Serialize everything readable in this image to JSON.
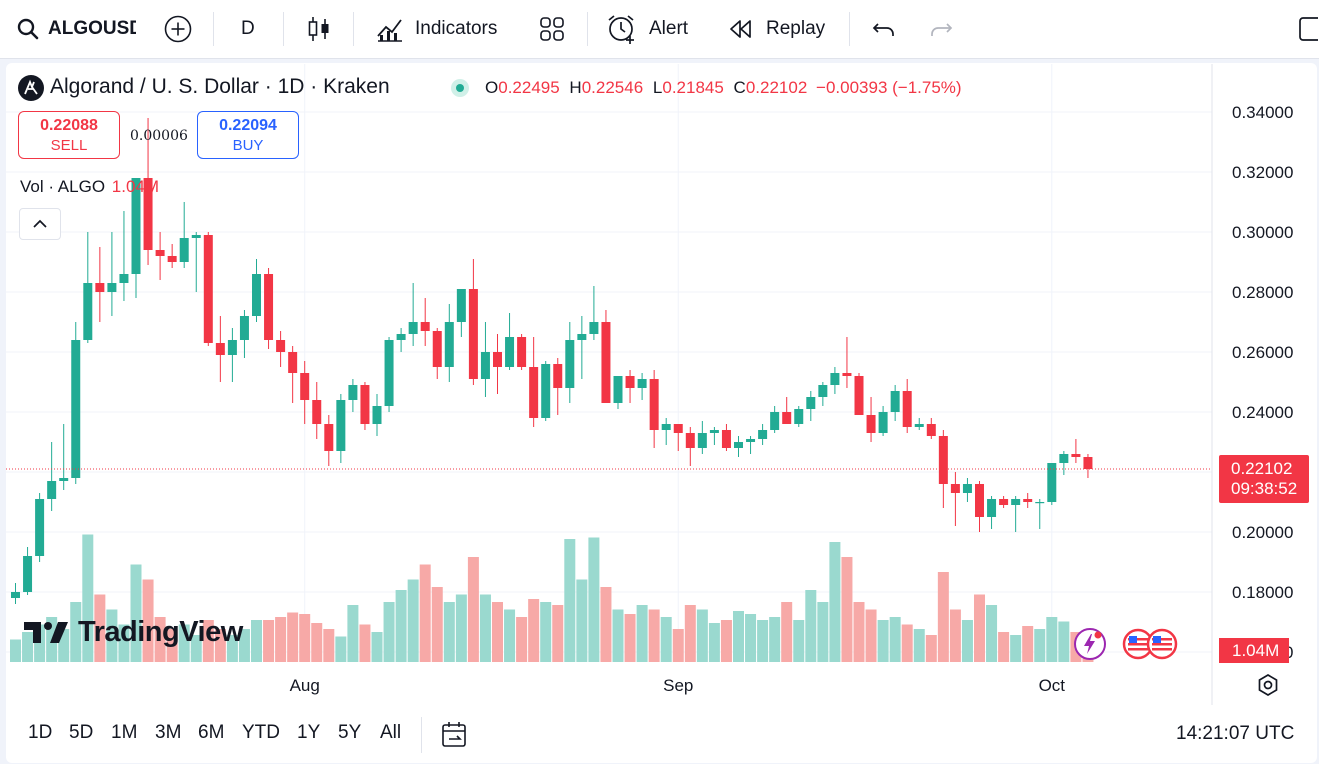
{
  "toolbar": {
    "symbol": "ALGOUSD",
    "interval": "D",
    "indicators_label": "Indicators",
    "alert_label": "Alert",
    "replay_label": "Replay"
  },
  "legend": {
    "title": "Algorand / U. S. Dollar · 1D · Kraken",
    "o_label": "O",
    "o_value": "0.22495",
    "h_label": "H",
    "h_value": "0.22546",
    "l_label": "L",
    "l_value": "0.21845",
    "c_label": "C",
    "c_value": "0.22102",
    "change": "−0.00393 (−1.75%)"
  },
  "trade": {
    "sell_price": "0.22088",
    "sell_label": "SELL",
    "spread": "0.00006",
    "buy_price": "0.22094",
    "buy_label": "BUY"
  },
  "volume_legend": {
    "label": "Vol · ALGO",
    "value": "1.04M"
  },
  "price_badge": {
    "price": "0.22102",
    "countdown": "09:38:52"
  },
  "volume_badge": "1.04M",
  "watermark": "TradingView",
  "ranges": [
    "1D",
    "5D",
    "1M",
    "3M",
    "6M",
    "YTD",
    "1Y",
    "5Y",
    "All"
  ],
  "clock": "14:21:07 UTC",
  "colors": {
    "up": "#22ab94",
    "down": "#f23645",
    "up_vol": "#9ad9cf",
    "down_vol": "#f7a9a7",
    "buy": "#2962ff"
  },
  "chart_data": {
    "type": "candlestick",
    "title": "Algorand / U. S. Dollar · 1D · Kraken",
    "y_ticks": [
      "0.34000",
      "0.32000",
      "0.30000",
      "0.28000",
      "0.26000",
      "0.24000",
      "0.22000",
      "0.20000",
      "0.18000",
      "0.16000"
    ],
    "ylim": [
      0.16,
      0.34
    ],
    "x_ticks": [
      {
        "label": "Aug",
        "index": 24
      },
      {
        "label": "Sep",
        "index": 55
      },
      {
        "label": "Oct",
        "index": 86
      }
    ],
    "candles": [
      [
        0.178,
        0.183,
        0.176,
        0.18,
        0.15
      ],
      [
        0.18,
        0.195,
        0.179,
        0.192,
        0.2
      ],
      [
        0.192,
        0.213,
        0.19,
        0.211,
        0.25
      ],
      [
        0.211,
        0.23,
        0.207,
        0.217,
        0.3
      ],
      [
        0.217,
        0.236,
        0.214,
        0.218,
        0.22
      ],
      [
        0.218,
        0.27,
        0.216,
        0.264,
        0.4
      ],
      [
        0.264,
        0.3,
        0.263,
        0.283,
        0.85
      ],
      [
        0.283,
        0.295,
        0.27,
        0.28,
        0.45
      ],
      [
        0.28,
        0.3,
        0.272,
        0.283,
        0.35
      ],
      [
        0.283,
        0.307,
        0.277,
        0.286,
        0.25
      ],
      [
        0.286,
        0.318,
        0.278,
        0.318,
        0.65
      ],
      [
        0.318,
        0.338,
        0.289,
        0.294,
        0.55
      ],
      [
        0.294,
        0.3,
        0.284,
        0.292,
        0.3
      ],
      [
        0.292,
        0.296,
        0.288,
        0.29,
        0.22
      ],
      [
        0.29,
        0.31,
        0.288,
        0.298,
        0.25
      ],
      [
        0.298,
        0.3,
        0.28,
        0.299,
        0.18
      ],
      [
        0.299,
        0.3,
        0.262,
        0.263,
        0.28
      ],
      [
        0.263,
        0.272,
        0.25,
        0.259,
        0.22
      ],
      [
        0.259,
        0.268,
        0.25,
        0.264,
        0.18
      ],
      [
        0.264,
        0.274,
        0.258,
        0.272,
        0.22
      ],
      [
        0.272,
        0.291,
        0.27,
        0.286,
        0.28
      ],
      [
        0.286,
        0.288,
        0.261,
        0.264,
        0.28
      ],
      [
        0.264,
        0.267,
        0.255,
        0.26,
        0.3
      ],
      [
        0.26,
        0.262,
        0.243,
        0.253,
        0.33
      ],
      [
        0.253,
        0.257,
        0.236,
        0.244,
        0.32
      ],
      [
        0.244,
        0.25,
        0.231,
        0.236,
        0.26
      ],
      [
        0.236,
        0.239,
        0.222,
        0.227,
        0.22
      ],
      [
        0.227,
        0.246,
        0.223,
        0.244,
        0.17
      ],
      [
        0.244,
        0.251,
        0.24,
        0.249,
        0.38
      ],
      [
        0.249,
        0.25,
        0.234,
        0.236,
        0.25
      ],
      [
        0.236,
        0.246,
        0.232,
        0.242,
        0.2
      ],
      [
        0.242,
        0.265,
        0.24,
        0.264,
        0.4
      ],
      [
        0.264,
        0.268,
        0.26,
        0.266,
        0.48
      ],
      [
        0.266,
        0.283,
        0.262,
        0.27,
        0.55
      ],
      [
        0.27,
        0.278,
        0.262,
        0.267,
        0.65
      ],
      [
        0.267,
        0.268,
        0.251,
        0.255,
        0.5
      ],
      [
        0.255,
        0.276,
        0.25,
        0.27,
        0.4
      ],
      [
        0.27,
        0.281,
        0.265,
        0.281,
        0.45
      ],
      [
        0.281,
        0.291,
        0.249,
        0.251,
        0.7
      ],
      [
        0.251,
        0.27,
        0.245,
        0.26,
        0.45
      ],
      [
        0.26,
        0.266,
        0.246,
        0.255,
        0.4
      ],
      [
        0.255,
        0.273,
        0.254,
        0.265,
        0.35
      ],
      [
        0.265,
        0.266,
        0.254,
        0.255,
        0.3
      ],
      [
        0.255,
        0.265,
        0.235,
        0.238,
        0.42
      ],
      [
        0.238,
        0.257,
        0.237,
        0.256,
        0.4
      ],
      [
        0.256,
        0.258,
        0.239,
        0.248,
        0.38
      ],
      [
        0.248,
        0.27,
        0.243,
        0.264,
        0.82
      ],
      [
        0.264,
        0.272,
        0.251,
        0.266,
        0.55
      ],
      [
        0.266,
        0.282,
        0.264,
        0.27,
        0.83
      ],
      [
        0.27,
        0.274,
        0.243,
        0.243,
        0.5
      ],
      [
        0.243,
        0.252,
        0.241,
        0.252,
        0.35
      ],
      [
        0.252,
        0.254,
        0.243,
        0.248,
        0.32
      ],
      [
        0.248,
        0.253,
        0.244,
        0.251,
        0.38
      ],
      [
        0.251,
        0.254,
        0.228,
        0.234,
        0.35
      ],
      [
        0.234,
        0.238,
        0.229,
        0.236,
        0.3
      ],
      [
        0.236,
        0.236,
        0.227,
        0.233,
        0.22
      ],
      [
        0.233,
        0.235,
        0.222,
        0.228,
        0.38
      ],
      [
        0.228,
        0.237,
        0.226,
        0.233,
        0.35
      ],
      [
        0.233,
        0.235,
        0.229,
        0.234,
        0.26
      ],
      [
        0.234,
        0.236,
        0.227,
        0.228,
        0.28
      ],
      [
        0.228,
        0.232,
        0.225,
        0.23,
        0.34
      ],
      [
        0.23,
        0.232,
        0.226,
        0.231,
        0.32
      ],
      [
        0.231,
        0.236,
        0.229,
        0.234,
        0.28
      ],
      [
        0.234,
        0.242,
        0.233,
        0.24,
        0.3
      ],
      [
        0.24,
        0.245,
        0.236,
        0.236,
        0.4
      ],
      [
        0.236,
        0.242,
        0.235,
        0.241,
        0.28
      ],
      [
        0.241,
        0.247,
        0.237,
        0.245,
        0.48
      ],
      [
        0.245,
        0.25,
        0.242,
        0.249,
        0.4
      ],
      [
        0.249,
        0.255,
        0.246,
        0.253,
        0.8
      ],
      [
        0.253,
        0.265,
        0.248,
        0.252,
        0.7
      ],
      [
        0.252,
        0.253,
        0.239,
        0.239,
        0.4
      ],
      [
        0.239,
        0.245,
        0.23,
        0.233,
        0.35
      ],
      [
        0.233,
        0.242,
        0.232,
        0.24,
        0.28
      ],
      [
        0.24,
        0.249,
        0.237,
        0.247,
        0.3
      ],
      [
        0.247,
        0.251,
        0.233,
        0.235,
        0.25
      ],
      [
        0.235,
        0.238,
        0.234,
        0.236,
        0.22
      ],
      [
        0.236,
        0.238,
        0.231,
        0.232,
        0.18
      ],
      [
        0.232,
        0.234,
        0.208,
        0.216,
        0.6
      ],
      [
        0.216,
        0.22,
        0.202,
        0.213,
        0.35
      ],
      [
        0.213,
        0.218,
        0.21,
        0.216,
        0.28
      ],
      [
        0.216,
        0.217,
        0.2,
        0.205,
        0.45
      ],
      [
        0.205,
        0.212,
        0.201,
        0.211,
        0.38
      ],
      [
        0.211,
        0.212,
        0.208,
        0.209,
        0.2
      ],
      [
        0.209,
        0.212,
        0.2,
        0.211,
        0.18
      ],
      [
        0.211,
        0.213,
        0.208,
        0.21,
        0.24
      ],
      [
        0.21,
        0.211,
        0.201,
        0.21,
        0.22
      ],
      [
        0.21,
        0.223,
        0.209,
        0.223,
        0.3
      ],
      [
        0.223,
        0.227,
        0.219,
        0.226,
        0.27
      ],
      [
        0.226,
        0.231,
        0.223,
        0.225,
        0.2
      ],
      [
        0.225,
        0.226,
        0.218,
        0.221,
        0.18
      ]
    ]
  }
}
